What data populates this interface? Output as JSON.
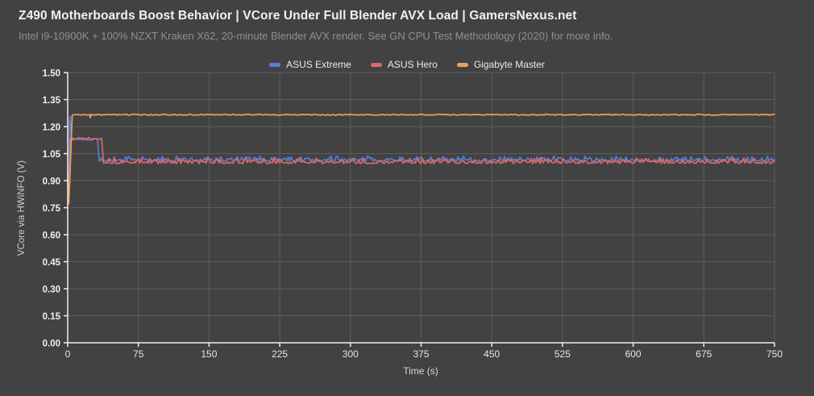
{
  "header": {
    "title": "Z490 Motherboards Boost Behavior | VCore Under Full Blender AVX Load | GamersNexus.net",
    "subtitle": "Intel i9-10900K + 100% NZXT Kraken X62, 20-minute Blender AVX render. See GN CPU Test Methodology (2020) for more info."
  },
  "colors": {
    "background": "#424242",
    "grid": "#5e5e5e",
    "axis": "#eeeeee",
    "title_text": "#f1f1f1",
    "subtitle_text": "#909090",
    "blue": "#587fd4",
    "red": "#df6868",
    "orange": "#e8a25c"
  },
  "chart_data": {
    "type": "line",
    "title": "Z490 Motherboards Boost Behavior | VCore Under Full Blender AVX Load | GamersNexus.net",
    "subtitle": "Intel i9-10900K + 100% NZXT Kraken X62, 20-minute Blender AVX render. See GN CPU Test Methodology (2020) for more info.",
    "xlabel": "Time (s)",
    "ylabel": "VCore via HWiNFO (V)",
    "xlim": [
      0,
      750
    ],
    "ylim": [
      0,
      1.5
    ],
    "xticks": [
      0,
      75,
      150,
      225,
      300,
      375,
      450,
      525,
      600,
      675,
      750
    ],
    "ytick_labels": [
      "0.00",
      "0.15",
      "0.30",
      "0.45",
      "0.60",
      "0.75",
      "0.90",
      "1.05",
      "1.20",
      "1.35",
      "1.50"
    ],
    "grid": true,
    "legend_position": "top-center",
    "sample_step_s": 1.5,
    "series": [
      {
        "name": "ASUS Extreme",
        "color": "#587fd4",
        "seed": 7,
        "summary": {
          "start_dip_v": 0.8,
          "boost_peak_v": 1.26,
          "plateau_v": 1.13,
          "plateau_until_s": 33,
          "steady_mean_v": 1.02,
          "steady_range_v": [
            1.0,
            1.04
          ]
        },
        "breakpoints": [
          [
            0,
            0.83
          ],
          [
            0.9,
            0.8
          ],
          [
            1.8,
            1.21
          ],
          [
            2.4,
            1.258
          ],
          [
            3.2,
            1.19
          ],
          [
            4.2,
            1.13
          ],
          [
            31.5,
            1.13
          ],
          [
            33.5,
            1.01
          ],
          [
            750,
            1.01
          ]
        ],
        "jitter": [
          {
            "from": 4.5,
            "to": 31,
            "amp": 0.007,
            "mode": "sym"
          },
          {
            "from": 35,
            "to": 750,
            "amp": 0.028,
            "mode": "spike"
          }
        ]
      },
      {
        "name": "ASUS Hero",
        "color": "#df6868",
        "seed": 13,
        "summary": {
          "start_dip_v": 0.77,
          "plateau_v": 1.14,
          "plateau_until_s": 37,
          "steady_mean_v": 1.01,
          "steady_range_v": [
            0.99,
            1.03
          ]
        },
        "breakpoints": [
          [
            0,
            0.795
          ],
          [
            1.3,
            0.77
          ],
          [
            3.0,
            1.136
          ],
          [
            36.0,
            1.136
          ],
          [
            38.0,
            0.998
          ],
          [
            750,
            0.998
          ]
        ],
        "jitter": [
          {
            "from": 4,
            "to": 35,
            "amp": 0.007,
            "mode": "sym"
          },
          {
            "from": 39.5,
            "to": 750,
            "amp": 0.03,
            "mode": "spike"
          }
        ]
      },
      {
        "name": "Gigabyte Master",
        "color": "#e8a25c",
        "seed": 3,
        "summary": {
          "start_dip_v": 0.78,
          "steady_v": 1.27,
          "notch_at_s": 24,
          "notch_v": 1.25
        },
        "breakpoints": [
          [
            0,
            0.94
          ],
          [
            1.1,
            0.776
          ],
          [
            2.2,
            0.9
          ],
          [
            4.8,
            1.263
          ],
          [
            6.5,
            1.266
          ],
          [
            23.2,
            1.266
          ],
          [
            24.0,
            1.247
          ],
          [
            24.8,
            1.266
          ],
          [
            750,
            1.266
          ]
        ],
        "jitter": [
          {
            "from": 7,
            "to": 750,
            "amp": 0.003,
            "mode": "sym"
          }
        ]
      }
    ]
  }
}
